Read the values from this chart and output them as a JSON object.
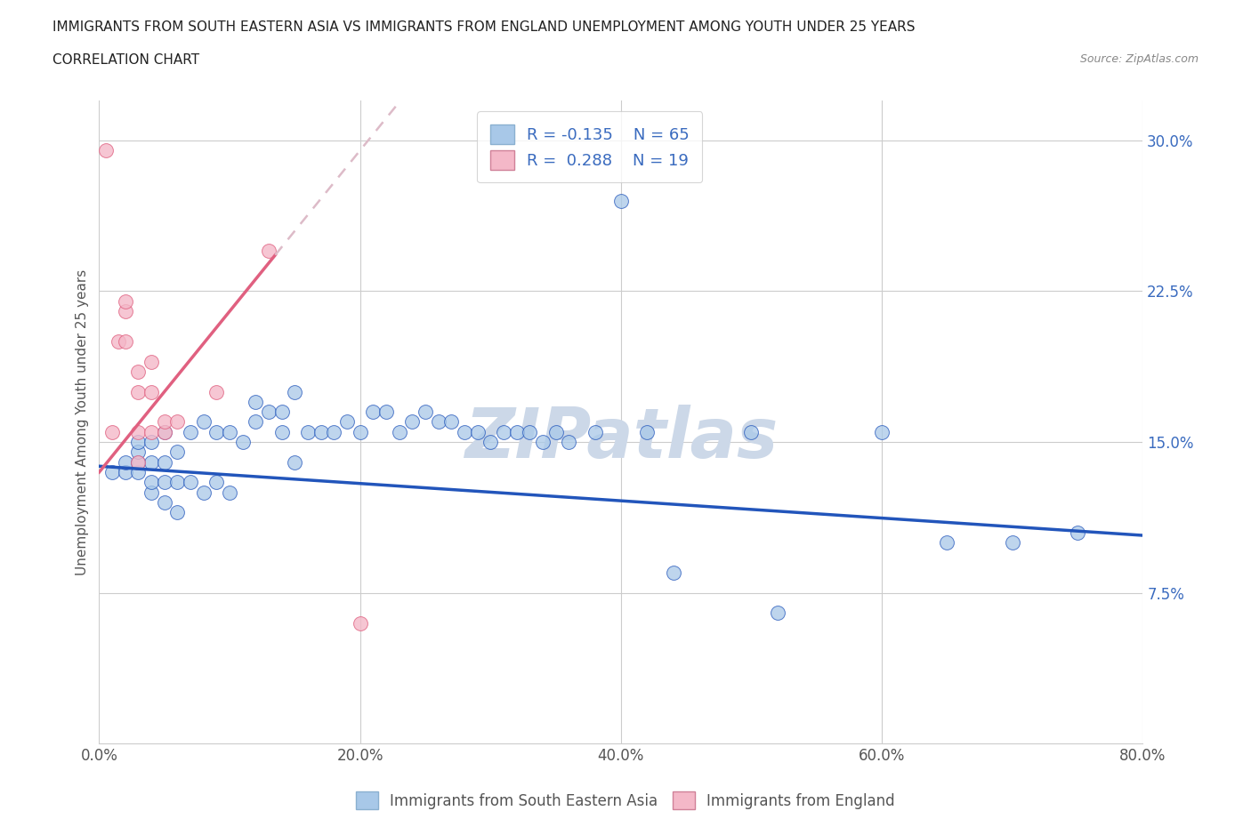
{
  "title_line1": "IMMIGRANTS FROM SOUTH EASTERN ASIA VS IMMIGRANTS FROM ENGLAND UNEMPLOYMENT AMONG YOUTH UNDER 25 YEARS",
  "title_line2": "CORRELATION CHART",
  "source_text": "Source: ZipAtlas.com",
  "ylabel": "Unemployment Among Youth under 25 years",
  "legend_label1": "Immigrants from South Eastern Asia",
  "legend_label2": "Immigrants from England",
  "r1": -0.135,
  "n1": 65,
  "r2": 0.288,
  "n2": 19,
  "color_blue": "#a8c8e8",
  "color_blue_line": "#2255bb",
  "color_pink": "#f4b8c8",
  "color_pink_line": "#e06080",
  "color_pink_dash": "#ddbbc8",
  "xlim": [
    0.0,
    0.8
  ],
  "ylim": [
    0.0,
    0.32
  ],
  "xticks": [
    0.0,
    0.2,
    0.4,
    0.6,
    0.8
  ],
  "yticks_right": [
    0.075,
    0.15,
    0.225,
    0.3
  ],
  "ytick_labels_right": [
    "7.5%",
    "15.0%",
    "22.5%",
    "30.0%"
  ],
  "xtick_labels": [
    "0.0%",
    "20.0%",
    "40.0%",
    "60.0%",
    "80.0%"
  ],
  "blue_x": [
    0.01,
    0.02,
    0.02,
    0.03,
    0.03,
    0.03,
    0.03,
    0.04,
    0.04,
    0.04,
    0.04,
    0.05,
    0.05,
    0.05,
    0.05,
    0.06,
    0.06,
    0.06,
    0.07,
    0.07,
    0.08,
    0.08,
    0.09,
    0.09,
    0.1,
    0.1,
    0.11,
    0.12,
    0.12,
    0.13,
    0.14,
    0.14,
    0.15,
    0.15,
    0.16,
    0.17,
    0.18,
    0.19,
    0.2,
    0.21,
    0.22,
    0.23,
    0.24,
    0.25,
    0.26,
    0.27,
    0.28,
    0.29,
    0.3,
    0.31,
    0.32,
    0.33,
    0.34,
    0.35,
    0.36,
    0.38,
    0.4,
    0.42,
    0.44,
    0.5,
    0.52,
    0.6,
    0.65,
    0.7,
    0.75
  ],
  "blue_y": [
    0.135,
    0.135,
    0.14,
    0.135,
    0.14,
    0.145,
    0.15,
    0.125,
    0.13,
    0.14,
    0.15,
    0.12,
    0.13,
    0.14,
    0.155,
    0.115,
    0.13,
    0.145,
    0.13,
    0.155,
    0.125,
    0.16,
    0.13,
    0.155,
    0.125,
    0.155,
    0.15,
    0.16,
    0.17,
    0.165,
    0.155,
    0.165,
    0.14,
    0.175,
    0.155,
    0.155,
    0.155,
    0.16,
    0.155,
    0.165,
    0.165,
    0.155,
    0.16,
    0.165,
    0.16,
    0.16,
    0.155,
    0.155,
    0.15,
    0.155,
    0.155,
    0.155,
    0.15,
    0.155,
    0.15,
    0.155,
    0.27,
    0.155,
    0.085,
    0.155,
    0.065,
    0.155,
    0.1,
    0.1,
    0.105
  ],
  "pink_x": [
    0.005,
    0.01,
    0.015,
    0.02,
    0.02,
    0.02,
    0.03,
    0.03,
    0.03,
    0.03,
    0.04,
    0.04,
    0.04,
    0.05,
    0.05,
    0.06,
    0.09,
    0.13,
    0.2
  ],
  "pink_y": [
    0.295,
    0.155,
    0.2,
    0.2,
    0.215,
    0.22,
    0.155,
    0.175,
    0.185,
    0.14,
    0.175,
    0.19,
    0.155,
    0.155,
    0.16,
    0.16,
    0.175,
    0.245,
    0.06
  ],
  "watermark": "ZIPatlas",
  "watermark_color": "#ccd8e8"
}
